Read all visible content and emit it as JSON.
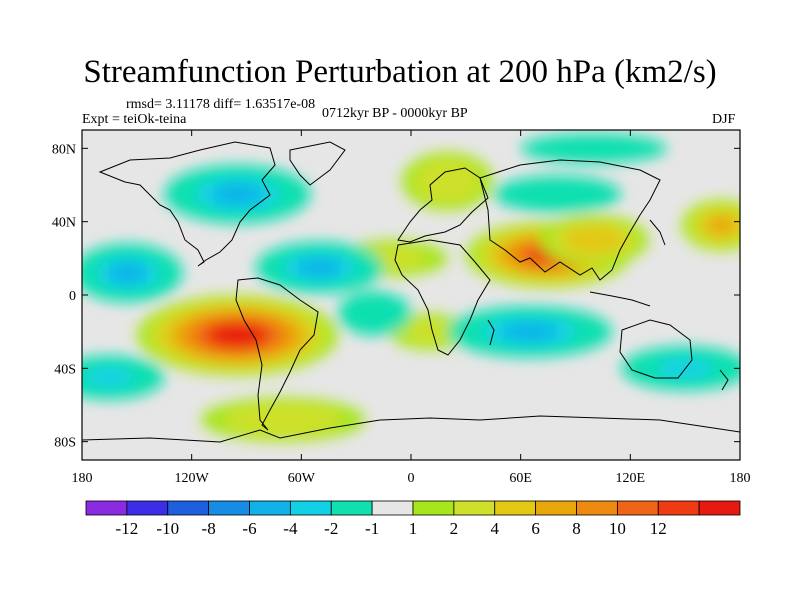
{
  "title": "Streamfunction Perturbation at 200 hPa (km2/s)",
  "stats_line": "rmsd= 3.11178 diff= 1.63517e-08",
  "expt_line": "Expt = teiOk-teina",
  "period_line": "0712kyr BP - 0000kyr BP",
  "season": "DJF",
  "chart_data": {
    "type": "filled-contour-map",
    "projection": "cylindrical-equidistant",
    "xlim": [
      -180,
      180
    ],
    "ylim": [
      -90,
      90
    ],
    "x_ticks": [
      {
        "value": -180,
        "label": "180"
      },
      {
        "value": -120,
        "label": "120W"
      },
      {
        "value": -60,
        "label": "60W"
      },
      {
        "value": 0,
        "label": "0"
      },
      {
        "value": 60,
        "label": "60E"
      },
      {
        "value": 120,
        "label": "120E"
      },
      {
        "value": 180,
        "label": "180"
      }
    ],
    "y_ticks": [
      {
        "value": 80,
        "label": "80N"
      },
      {
        "value": 40,
        "label": "40N"
      },
      {
        "value": 0,
        "label": "0"
      },
      {
        "value": -40,
        "label": "40S"
      },
      {
        "value": -80,
        "label": "80S"
      }
    ],
    "colorbar": {
      "colors": [
        "#8a2be2",
        "#3b2ee6",
        "#1d5fde",
        "#168ce6",
        "#10b2e8",
        "#12d1e6",
        "#10e0b0",
        "#e6e6e6",
        "#a6e61a",
        "#cfe02a",
        "#e3c814",
        "#e8a80c",
        "#ee8a10",
        "#f06418",
        "#f03a14",
        "#e81a10"
      ],
      "labels": [
        "-12",
        "-10",
        "-8",
        "-6",
        "-4",
        "-2",
        "-1",
        "1",
        "2",
        "4",
        "6",
        "8",
        "10",
        "12"
      ]
    },
    "anomaly_centers": [
      {
        "name": "south-america-high",
        "lon": -95,
        "lat": -22,
        "value": 13,
        "rx": 55,
        "ry": 22
      },
      {
        "name": "south-asia-high",
        "lon": 75,
        "lat": 22,
        "value": 12,
        "rx": 45,
        "ry": 18
      },
      {
        "name": "east-asia-positive",
        "lon": 100,
        "lat": 30,
        "value": 5,
        "rx": 30,
        "ry": 14
      },
      {
        "name": "north-pacific-west-positive",
        "lon": 170,
        "lat": 38,
        "value": 6,
        "rx": 22,
        "ry": 14
      },
      {
        "name": "europe-positive",
        "lon": 20,
        "lat": 62,
        "value": 3,
        "rx": 25,
        "ry": 16
      },
      {
        "name": "southern-ocean-positive",
        "lon": -70,
        "lat": -68,
        "value": 3,
        "rx": 45,
        "ry": 12
      },
      {
        "name": "atlantic-positive",
        "lon": -10,
        "lat": 20,
        "value": 2,
        "rx": 30,
        "ry": 10
      },
      {
        "name": "africa-south-positive",
        "lon": 10,
        "lat": -20,
        "value": 2,
        "rx": 22,
        "ry": 10
      },
      {
        "name": "north-america-negative",
        "lon": -95,
        "lat": 55,
        "value": -5,
        "rx": 40,
        "ry": 16
      },
      {
        "name": "atlantic-negative",
        "lon": -50,
        "lat": 15,
        "value": -6,
        "rx": 35,
        "ry": 14
      },
      {
        "name": "indian-ocean-negative",
        "lon": 65,
        "lat": -20,
        "value": -5,
        "rx": 45,
        "ry": 14
      },
      {
        "name": "north-pacific-negative",
        "lon": -155,
        "lat": 12,
        "value": -5,
        "rx": 30,
        "ry": 16
      },
      {
        "name": "arctic-negative",
        "lon": 100,
        "lat": 80,
        "value": -2,
        "rx": 40,
        "ry": 8
      },
      {
        "name": "south-pacific-negative",
        "lon": -165,
        "lat": -45,
        "value": -3,
        "rx": 30,
        "ry": 12
      },
      {
        "name": "asia-north-negative",
        "lon": 80,
        "lat": 55,
        "value": -2,
        "rx": 35,
        "ry": 10
      },
      {
        "name": "australia-south-negative",
        "lon": 150,
        "lat": -40,
        "value": -3,
        "rx": 35,
        "ry": 12
      },
      {
        "name": "africa-west-negative",
        "lon": -20,
        "lat": -10,
        "value": -2,
        "rx": 20,
        "ry": 12
      }
    ]
  }
}
